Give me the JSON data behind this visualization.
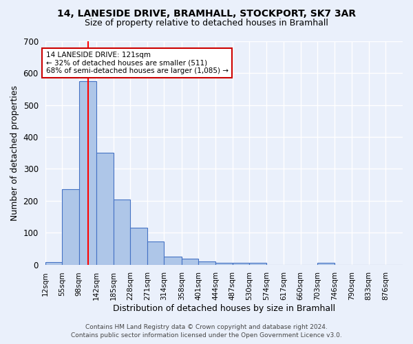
{
  "title1": "14, LANESIDE DRIVE, BRAMHALL, STOCKPORT, SK7 3AR",
  "title2": "Size of property relative to detached houses in Bramhall",
  "xlabel": "Distribution of detached houses by size in Bramhall",
  "ylabel": "Number of detached properties",
  "bar_edges": [
    12,
    55,
    98,
    142,
    185,
    228,
    271,
    314,
    358,
    401,
    444,
    487,
    530,
    574,
    617,
    660,
    703,
    746,
    790,
    833,
    876
  ],
  "bar_heights": [
    8,
    237,
    575,
    350,
    203,
    115,
    73,
    25,
    18,
    10,
    5,
    5,
    5,
    0,
    0,
    0,
    5,
    0,
    0,
    0,
    0
  ],
  "bar_color": "#aec6e8",
  "bar_edge_color": "#4472c4",
  "bg_color": "#eaf0fb",
  "grid_color": "#ffffff",
  "red_line_x": 121,
  "annotation_line1": "14 LANESIDE DRIVE: 121sqm",
  "annotation_line2": "← 32% of detached houses are smaller (511)",
  "annotation_line3": "68% of semi-detached houses are larger (1,085) →",
  "annotation_box_color": "#ffffff",
  "annotation_border_color": "#cc0000",
  "footer1": "Contains HM Land Registry data © Crown copyright and database right 2024.",
  "footer2": "Contains public sector information licensed under the Open Government Licence v3.0.",
  "ylim": [
    0,
    700
  ],
  "yticks": [
    0,
    100,
    200,
    300,
    400,
    500,
    600,
    700
  ],
  "title1_fontsize": 10,
  "title2_fontsize": 9,
  "xlabel_fontsize": 9,
  "ylabel_fontsize": 9,
  "tick_fontsize": 7.5,
  "annotation_fontsize": 7.5,
  "footer_fontsize": 6.5
}
